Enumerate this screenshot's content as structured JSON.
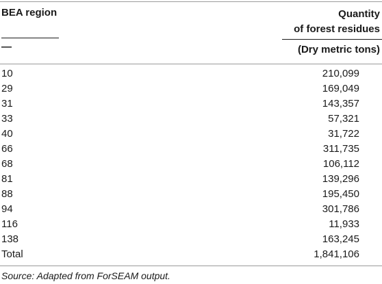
{
  "table": {
    "header": {
      "region_title": "BEA region",
      "region_unit": "—",
      "quantity_title_line1": "Quantity",
      "quantity_title_line2": "of forest residues",
      "quantity_unit": "(Dry metric tons)"
    },
    "rows": [
      {
        "region": "10",
        "quantity": "210,099"
      },
      {
        "region": "29",
        "quantity": "169,049"
      },
      {
        "region": "31",
        "quantity": "143,357"
      },
      {
        "region": "33",
        "quantity": "57,321"
      },
      {
        "region": "40",
        "quantity": "31,722"
      },
      {
        "region": "66",
        "quantity": "311,735"
      },
      {
        "region": "68",
        "quantity": "106,112"
      },
      {
        "region": "81",
        "quantity": "139,296"
      },
      {
        "region": "88",
        "quantity": "195,450"
      },
      {
        "region": "94",
        "quantity": "301,786"
      },
      {
        "region": "116",
        "quantity": "11,933"
      },
      {
        "region": "138",
        "quantity": "163,245"
      },
      {
        "region": "Total",
        "quantity": "1,841,106"
      }
    ],
    "source": "Source: Adapted from ForSEAM output."
  }
}
